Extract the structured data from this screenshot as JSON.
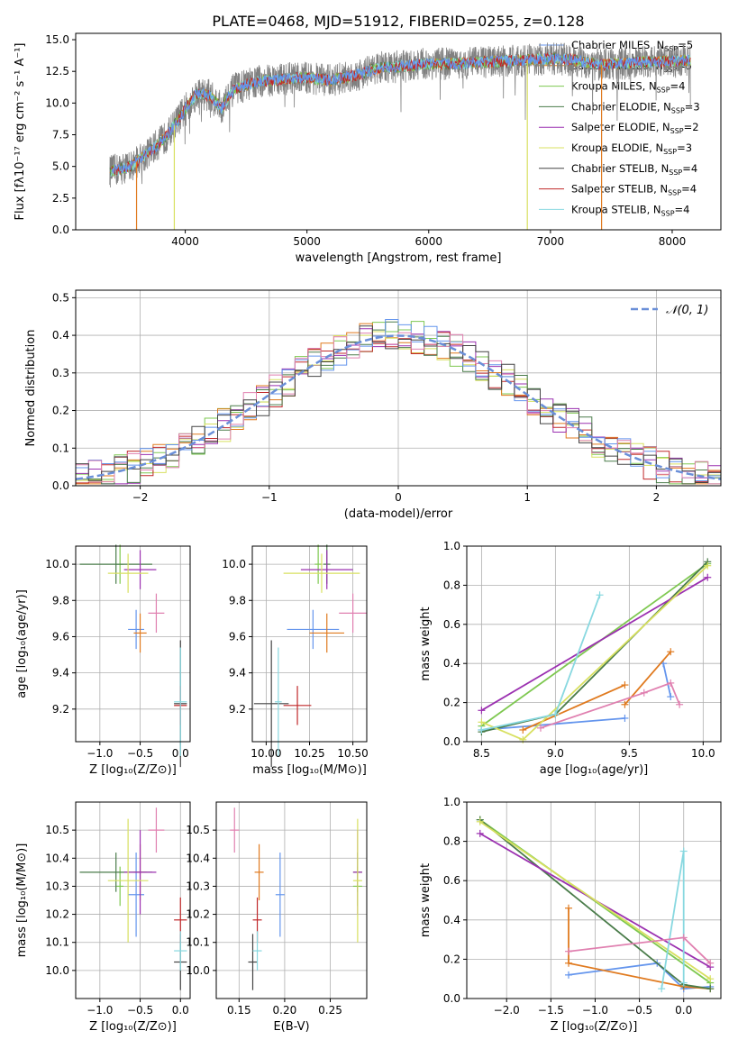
{
  "figure_title": "PLATE=0468, MJD=51912, FIBERID=0255, z=0.128",
  "colors": {
    "chabrier_miles": "#6495ed",
    "salpeter_miles": "#e07a1f",
    "kroupa_miles": "#7ec850",
    "chabrier_elodie": "#4a7c4a",
    "salpeter_elodie": "#9b30b0",
    "kroupa_elodie": "#d8e060",
    "chabrier_stelib": "#444444",
    "salpeter_stelib": "#c0282a",
    "kroupa_stelib": "#88d8e0",
    "hist_pink": "#e080b0",
    "data": "#808080",
    "normal": "#6a8fd8"
  },
  "legend": [
    {
      "label": "Chabrier MILES, N",
      "sub": "SSP",
      "suffix": "=5",
      "color": "#6495ed"
    },
    {
      "label": "Salpeter MILES, N",
      "sub": "SSP",
      "suffix": "=5",
      "color": "#e07a1f"
    },
    {
      "label": "Kroupa MILES, N",
      "sub": "SSP",
      "suffix": "=4",
      "color": "#7ec850"
    },
    {
      "label": "Chabrier ELODIE, N",
      "sub": "SSP",
      "suffix": "=3",
      "color": "#4a7c4a"
    },
    {
      "label": "Salpeter ELODIE, N",
      "sub": "SSP",
      "suffix": "=2",
      "color": "#9b30b0"
    },
    {
      "label": "Kroupa ELODIE, N",
      "sub": "SSP",
      "suffix": "=3",
      "color": "#d8e060"
    },
    {
      "label": "Chabrier STELIB, N",
      "sub": "SSP",
      "suffix": "=4",
      "color": "#444444"
    },
    {
      "label": "Salpeter STELIB, N",
      "sub": "SSP",
      "suffix": "=4",
      "color": "#c0282a"
    },
    {
      "label": "Kroupa STELIB, N",
      "sub": "SSP",
      "suffix": "=4",
      "color": "#88d8e0"
    }
  ],
  "chart_data": [
    {
      "id": "spectrum",
      "type": "line",
      "xlabel": "wavelength [Angstrom, rest frame]",
      "ylabel": "Flux [fλ10⁻¹⁷ erg cm⁻² s⁻¹ A⁻¹]",
      "xlim": [
        3100,
        8400
      ],
      "ylim": [
        0,
        15.5
      ],
      "xticks": [
        4000,
        5000,
        6000,
        7000,
        8000
      ],
      "yticks": [
        0.0,
        2.5,
        5.0,
        7.5,
        10.0,
        12.5,
        15.0
      ],
      "grid": false,
      "legend_position": "upper-right",
      "continuum": [
        [
          3380,
          4.6
        ],
        [
          3550,
          5.0
        ],
        [
          3700,
          6.1
        ],
        [
          3850,
          7.4
        ],
        [
          4000,
          9.5
        ],
        [
          4100,
          10.8
        ],
        [
          4200,
          10.6
        ],
        [
          4300,
          9.6
        ],
        [
          4400,
          11.1
        ],
        [
          4600,
          11.7
        ],
        [
          4800,
          11.9
        ],
        [
          5000,
          12.0
        ],
        [
          5200,
          11.8
        ],
        [
          5400,
          12.2
        ],
        [
          5600,
          12.8
        ],
        [
          5800,
          12.9
        ],
        [
          6000,
          13.1
        ],
        [
          6200,
          13.1
        ],
        [
          6400,
          13.2
        ],
        [
          6600,
          13.3
        ],
        [
          6800,
          13.4
        ],
        [
          7000,
          13.5
        ],
        [
          7200,
          13.4
        ],
        [
          7400,
          13.0
        ],
        [
          7700,
          13.2
        ],
        [
          8000,
          13.3
        ],
        [
          8150,
          13.4
        ]
      ],
      "data_spectrum_range": [
        3380,
        8150
      ]
    },
    {
      "id": "residuals",
      "type": "histogram",
      "xlabel": "(data-model)/error",
      "ylabel": "Normed distribution",
      "xlim": [
        -2.5,
        2.5
      ],
      "ylim": [
        0,
        0.52
      ],
      "xticks": [
        -2,
        -1,
        0,
        1,
        2
      ],
      "yticks": [
        0.0,
        0.1,
        0.2,
        0.3,
        0.4,
        0.5
      ],
      "grid": true,
      "legend_position": "upper-right",
      "legend_label": "𝒩(0, 1)",
      "bin_edges_range": [
        -2.5,
        2.5
      ],
      "bin_width": 0.1
    },
    {
      "id": "age_vs_Z",
      "type": "scatter",
      "xlabel": "Z [log₁₀(Z/Z⊙)]",
      "ylabel": "age  [log₁₀(age/yr)]",
      "xlim": [
        -1.3,
        0.12
      ],
      "ylim": [
        9.02,
        10.1
      ],
      "xticks": [
        -1.0,
        -0.5,
        0.0
      ],
      "yticks": [
        9.2,
        9.4,
        9.6,
        9.8,
        10.0
      ],
      "grid": true
    },
    {
      "id": "age_vs_mass",
      "type": "scatter",
      "xlabel": "mass [log₁₀(M/M⊙)]",
      "ylabel": "",
      "xlim": [
        9.92,
        10.58
      ],
      "ylim": [
        9.02,
        10.1
      ],
      "xticks": [
        10.0,
        10.25,
        10.5
      ],
      "yticks": [
        9.2,
        9.4,
        9.6,
        9.8,
        10.0
      ],
      "grid": true
    },
    {
      "id": "weight_vs_age",
      "type": "line",
      "xlabel": "age  [log₁₀(age/yr)]",
      "ylabel": "mass weight",
      "xlim": [
        8.4,
        10.12
      ],
      "ylim": [
        0,
        1.0
      ],
      "xticks": [
        8.5,
        9.0,
        9.5,
        10.0
      ],
      "yticks": [
        0.0,
        0.2,
        0.4,
        0.6,
        0.8,
        1.0
      ],
      "grid": true
    },
    {
      "id": "mass_vs_Z",
      "type": "scatter",
      "xlabel": "Z [log₁₀(Z/Z⊙)]",
      "ylabel": "mass [log₁₀(M/M⊙)]",
      "xlim": [
        -1.3,
        0.12
      ],
      "ylim": [
        9.9,
        10.6
      ],
      "xticks": [
        -1.0,
        -0.5,
        0.0
      ],
      "yticks": [
        10.0,
        10.1,
        10.2,
        10.3,
        10.4,
        10.5
      ],
      "grid": true
    },
    {
      "id": "mass_vs_ebv",
      "type": "scatter",
      "xlabel": "E(B-V)",
      "ylabel": "",
      "xlim": [
        0.125,
        0.29
      ],
      "ylim": [
        9.9,
        10.6
      ],
      "xticks": [
        0.15,
        0.2,
        0.25
      ],
      "yticks": [
        10.0,
        10.1,
        10.2,
        10.3,
        10.4,
        10.5
      ],
      "grid": true
    },
    {
      "id": "weight_vs_Z",
      "type": "line",
      "xlabel": "Z [log₁₀(Z/Z⊙)]",
      "ylabel": "mass weight",
      "xlim": [
        -2.45,
        0.42
      ],
      "ylim": [
        0,
        1.0
      ],
      "xticks": [
        -2.0,
        -1.5,
        -1.0,
        -0.5,
        0.0
      ],
      "yticks": [
        0.0,
        0.2,
        0.4,
        0.6,
        0.8,
        1.0
      ],
      "grid": true
    }
  ],
  "models": [
    {
      "name": "Chabrier MILES",
      "color": "#6495ed",
      "Z": -0.55,
      "Zerr": 0.1,
      "age": 9.64,
      "ageerr": 0.0,
      "mass": 10.27,
      "masserr": 0.15,
      "ebv": 0.195,
      "w_age": [
        [
          8.5,
          0.06
        ],
        [
          9.47,
          0.12
        ]
      ],
      "w_age_b": [
        [
          9.73,
          0.4
        ],
        [
          9.78,
          0.23
        ]
      ],
      "w_Z": [
        [
          -1.3,
          0.12
        ],
        [
          -0.3,
          0.18
        ],
        [
          0.0,
          0.05
        ],
        [
          0.3,
          0.06
        ]
      ]
    },
    {
      "name": "Salpeter MILES",
      "color": "#e07a1f",
      "Z": -0.5,
      "Zerr": 0.08,
      "age": 9.62,
      "ageerr": 0.0,
      "mass": 10.35,
      "masserr": 0.1,
      "ebv": 0.172,
      "w_age": [
        [
          8.78,
          0.06
        ],
        [
          9.47,
          0.29
        ]
      ],
      "w_age_b": [
        [
          9.47,
          0.19
        ],
        [
          9.78,
          0.46
        ]
      ],
      "w_Z": [
        [
          -1.3,
          0.46
        ],
        [
          -1.3,
          0.18
        ],
        [
          0.0,
          0.06
        ],
        [
          0.3,
          0.05
        ]
      ]
    },
    {
      "name": "Kroupa MILES",
      "color": "#7ec850",
      "Z": -0.75,
      "Zerr": 0.0,
      "age": 10.0,
      "ageerr": 0.0,
      "mass": 10.3,
      "masserr": 0.0,
      "ebv": 0.28,
      "w_age": [
        [
          8.5,
          0.08
        ],
        [
          10.03,
          0.91
        ]
      ],
      "w_age_b": [],
      "w_Z": [
        [
          -2.3,
          0.91
        ],
        [
          0.3,
          0.08
        ]
      ]
    },
    {
      "name": "Chabrier ELODIE",
      "color": "#4a7c4a",
      "Z": -0.8,
      "Zerr": 0.45,
      "age": 10.0,
      "ageerr": 0.06,
      "mass": 10.35,
      "masserr": 0.0,
      "ebv": 0.28,
      "w_age": [
        [
          8.5,
          0.05
        ],
        [
          9.0,
          0.14
        ],
        [
          10.03,
          0.92
        ]
      ],
      "w_age_b": [],
      "w_Z": [
        [
          -2.3,
          0.91
        ],
        [
          0.0,
          0.07
        ],
        [
          0.3,
          0.05
        ]
      ]
    },
    {
      "name": "Salpeter ELODIE",
      "color": "#9b30b0",
      "Z": -0.5,
      "Zerr": 0.2,
      "age": 9.97,
      "ageerr": 0.0,
      "mass": 10.35,
      "masserr": 0.15,
      "ebv": 0.28,
      "w_age": [
        [
          8.5,
          0.16
        ],
        [
          10.03,
          0.84
        ]
      ],
      "w_age_b": [],
      "w_Z": [
        [
          -2.3,
          0.84
        ],
        [
          0.3,
          0.16
        ]
      ]
    },
    {
      "name": "Kroupa ELODIE",
      "color": "#d8e060",
      "Z": -0.65,
      "Zerr": 0.25,
      "age": 9.95,
      "ageerr": 0.0,
      "mass": 10.32,
      "masserr": 0.22,
      "ebv": 0.28,
      "w_age": [
        [
          8.5,
          0.1
        ],
        [
          8.78,
          0.01
        ],
        [
          10.03,
          0.9
        ]
      ],
      "w_age_b": [],
      "w_Z": [
        [
          -2.3,
          0.9
        ],
        [
          0.3,
          0.1
        ]
      ]
    },
    {
      "name": "Chabrier STELIB",
      "color": "#444444",
      "Z": 0.0,
      "Zerr": 0.08,
      "age": 9.23,
      "ageerr": 0.35,
      "mass": 10.03,
      "masserr": 0.1,
      "ebv": 0.165,
      "w_age": [],
      "w_age_b": [],
      "w_Z": []
    },
    {
      "name": "Salpeter STELIB",
      "color": "#c0282a",
      "Z": 0.0,
      "Zerr": 0.08,
      "age": 9.22,
      "ageerr": 0.0,
      "mass": 10.18,
      "masserr": 0.08,
      "ebv": 0.17,
      "w_age": [],
      "w_age_b": [],
      "w_Z": []
    },
    {
      "name": "Kroupa STELIB",
      "color": "#88d8e0",
      "Z": 0.0,
      "Zerr": 0.08,
      "age": 9.24,
      "ageerr": 0.3,
      "mass": 10.07,
      "masserr": 0.0,
      "ebv": 0.17,
      "w_age": [
        [
          8.5,
          0.06
        ],
        [
          9.0,
          0.14
        ],
        [
          9.3,
          0.75
        ]
      ],
      "w_age_b": [],
      "w_Z": [
        [
          -0.25,
          0.05
        ],
        [
          0.0,
          0.75
        ],
        [
          0.0,
          0.08
        ]
      ]
    },
    {
      "name": "Pink",
      "color": "#e080b0",
      "Z": -0.3,
      "Zerr": 0.1,
      "age": 9.73,
      "ageerr": 0.1,
      "mass": 10.5,
      "masserr": 0.08,
      "ebv": 0.145,
      "w_age": [
        [
          8.9,
          0.07
        ],
        [
          9.6,
          0.25
        ],
        [
          9.78,
          0.3
        ],
        [
          9.84,
          0.19
        ]
      ],
      "w_age_b": [],
      "w_Z": [
        [
          -1.3,
          0.24
        ],
        [
          0.0,
          0.31
        ],
        [
          0.3,
          0.18
        ]
      ]
    }
  ]
}
